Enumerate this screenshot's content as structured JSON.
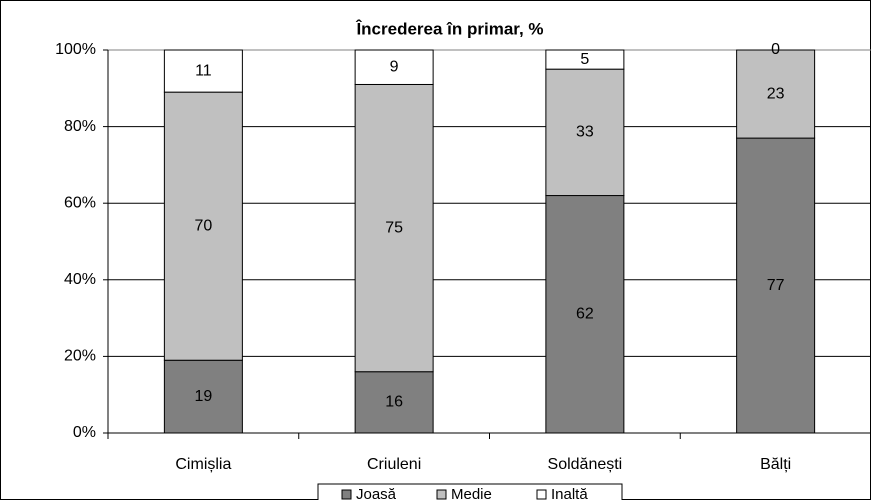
{
  "chart_data": {
    "type": "stacked_bar",
    "title": "Încrederea în primar, %",
    "categories": [
      "Cimișlia",
      "Criuleni",
      "Soldănești",
      "Bălți"
    ],
    "series": [
      {
        "name": "Joasă",
        "color": "#808080",
        "values": [
          19,
          16,
          62,
          77
        ]
      },
      {
        "name": "Medie",
        "color": "#c0c0c0",
        "values": [
          70,
          75,
          33,
          23
        ]
      },
      {
        "name": "Inaltă",
        "color": "#ffffff",
        "values": [
          11,
          9,
          5,
          0
        ]
      }
    ],
    "ylim": [
      0,
      100
    ],
    "yticks": [
      {
        "value": 0,
        "label": "0%"
      },
      {
        "value": 20,
        "label": "20%"
      },
      {
        "value": 40,
        "label": "40%"
      },
      {
        "value": 60,
        "label": "60%"
      },
      {
        "value": 80,
        "label": "80%"
      },
      {
        "value": 100,
        "label": "100%"
      }
    ],
    "grid": true,
    "legend": "bottom"
  }
}
